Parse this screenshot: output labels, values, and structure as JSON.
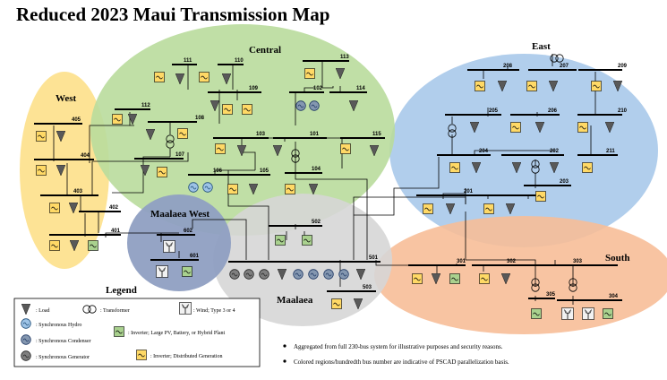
{
  "title": "Reduced 2023 Maui Transmission Map",
  "regions": {
    "west": "West",
    "central": "Central",
    "east": "East",
    "maalaea_west": "Maalaea West",
    "maalaea": "Maalaea",
    "south": "South"
  },
  "region_colors": {
    "west": "#fde08a",
    "central": "#b9dc9c",
    "east": "#a9c9ea",
    "maalaea_west": "#8f9fc2",
    "maalaea": "#d6d6d6",
    "south": "#f7be98"
  },
  "symbol_colors": {
    "load": "#595959",
    "hydro_fill": "#9dc3e6",
    "condenser_fill": "#8497b0",
    "generator_fill": "#7f7f7f",
    "inverter_large_fill": "#a9d18e",
    "inverter_distributed_fill": "#ffd966"
  },
  "buses": {
    "b101": "101",
    "b102": "102",
    "b103": "103",
    "b104": "104",
    "b105": "105",
    "b106": "106",
    "b107": "107",
    "b108": "108",
    "b109": "109",
    "b110": "110",
    "b111": "111",
    "b112": "112",
    "b113": "113",
    "b114": "114",
    "b115": "115",
    "b201": "201",
    "b202": "202",
    "b203": "203",
    "b204": "204",
    "b205": "205",
    "b206": "206",
    "b207": "207",
    "b208": "208",
    "b209": "209",
    "b210": "210",
    "b211": "211",
    "b301": "301",
    "b302": "302",
    "b303": "303",
    "b304": "304",
    "b305": "305",
    "b401": "401",
    "b402": "402",
    "b403": "403",
    "b404": "404",
    "b405": "405",
    "b501": "501",
    "b502": "502",
    "b503": "503",
    "b601": "601",
    "b602": "602"
  },
  "legend": {
    "title": "Legend",
    "load": ": Load",
    "transformer": ": Transformer",
    "wind": ": Wind; Type 3 or 4",
    "hydro": ": Synchronous Hydro",
    "condenser": ": Synchronous Condenser",
    "inverter_large": ": Inverter; Large PV, Battery, or Hybrid Plant",
    "generator": ": Synchronous Generator",
    "inverter_distributed": ": Inverter; Distributed Generation"
  },
  "notes": [
    "Aggregated from full 230-bus system for illustrative purposes and security reasons.",
    "Colored regions/hundredth bus number are indicative of PSCAD parallelization basis."
  ]
}
